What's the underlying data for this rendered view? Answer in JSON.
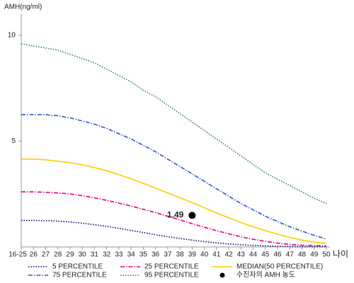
{
  "chart_data": {
    "type": "line",
    "y_label": "AMH(ng/ml)",
    "x_label": "나이",
    "categories": [
      "16-25",
      "26",
      "27",
      "28",
      "29",
      "30",
      "31",
      "32",
      "33",
      "34",
      "35",
      "36",
      "37",
      "38",
      "39",
      "40",
      "41",
      "42",
      "43",
      "44",
      "45",
      "46",
      "47",
      "48",
      "49",
      "50"
    ],
    "ylim": [
      0,
      11
    ],
    "yticks": [
      5,
      10
    ],
    "series": [
      {
        "name": "5 PERCENTILE",
        "color": "#000080",
        "dash": "1.5 2",
        "values": [
          1.25,
          1.25,
          1.24,
          1.22,
          1.18,
          1.12,
          1.05,
          0.97,
          0.88,
          0.78,
          0.68,
          0.58,
          0.48,
          0.4,
          0.32,
          0.25,
          0.19,
          0.14,
          0.1,
          0.07,
          0.05,
          0.03,
          0.02,
          0.01,
          0.01,
          0.01
        ]
      },
      {
        "name": "25 PERCENTILE",
        "color": "#e0007f",
        "dash": "6 2 1.5 2",
        "values": [
          2.6,
          2.6,
          2.58,
          2.55,
          2.5,
          2.42,
          2.32,
          2.2,
          2.07,
          1.93,
          1.78,
          1.62,
          1.45,
          1.28,
          1.1,
          0.93,
          0.77,
          0.62,
          0.48,
          0.36,
          0.26,
          0.18,
          0.12,
          0.08,
          0.06,
          0.05
        ]
      },
      {
        "name": "MEDIAN(50 PERCENTILE)",
        "color": "#ffcc00",
        "dash": "none",
        "values": [
          4.15,
          4.15,
          4.12,
          4.05,
          3.98,
          3.88,
          3.75,
          3.6,
          3.42,
          3.22,
          3.0,
          2.78,
          2.55,
          2.32,
          2.1,
          1.85,
          1.6,
          1.38,
          1.15,
          0.95,
          0.77,
          0.6,
          0.45,
          0.32,
          0.22,
          0.17
        ]
      },
      {
        "name": "75 PERCENTILE",
        "color": "#3355cc",
        "dash": "6 2 1.5 2",
        "values": [
          6.25,
          6.25,
          6.25,
          6.2,
          6.1,
          5.95,
          5.8,
          5.6,
          5.35,
          5.1,
          4.8,
          4.5,
          4.15,
          3.8,
          3.45,
          3.1,
          2.75,
          2.4,
          2.05,
          1.75,
          1.45,
          1.2,
          0.95,
          0.75,
          0.55,
          0.37
        ]
      },
      {
        "name": "95 PERCENTILE",
        "color": "#2e7d4f",
        "dash": "1.5 2",
        "values": [
          9.6,
          9.5,
          9.4,
          9.3,
          9.1,
          8.9,
          8.7,
          8.4,
          8.1,
          7.8,
          7.4,
          7.1,
          6.7,
          6.3,
          5.9,
          5.5,
          5.1,
          4.7,
          4.3,
          3.9,
          3.5,
          3.2,
          2.9,
          2.6,
          2.3,
          2.05
        ]
      }
    ],
    "point": {
      "name": "수진자의 AMH 농도",
      "category": "39",
      "value": 1.49,
      "color": "#000000"
    }
  }
}
